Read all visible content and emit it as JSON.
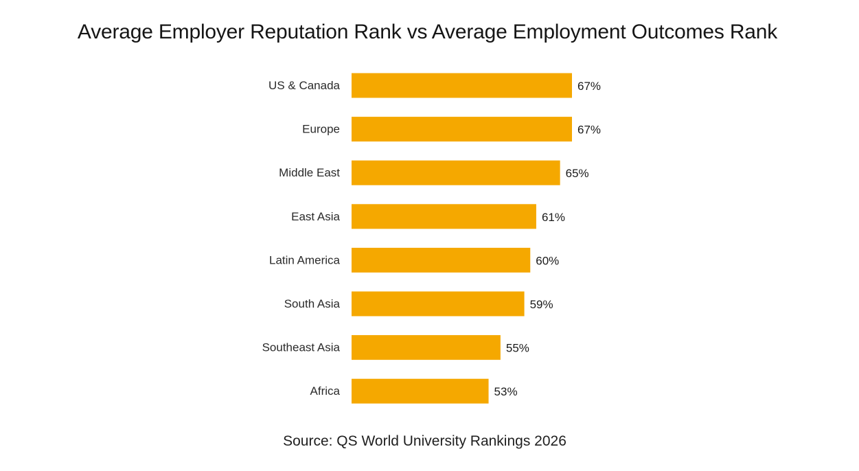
{
  "chart_data": {
    "type": "bar",
    "orientation": "horizontal",
    "title": "Average Employer Reputation Rank vs Average Employment Outcomes Rank",
    "categories": [
      "US & Canada",
      "Europe",
      "Middle East",
      "East Asia",
      "Latin America",
      "South Asia",
      "Southeast Asia",
      "Africa"
    ],
    "values": [
      67,
      67,
      65,
      61,
      60,
      59,
      55,
      53
    ],
    "value_labels": [
      "67%",
      "67%",
      "65%",
      "61%",
      "60%",
      "59%",
      "55%",
      "53%"
    ],
    "unit": "%",
    "xlim": [
      30,
      100
    ],
    "grid": false,
    "legend": "none",
    "bar_color": "#F5A800",
    "source": "Source: QS World University Rankings 2026"
  }
}
